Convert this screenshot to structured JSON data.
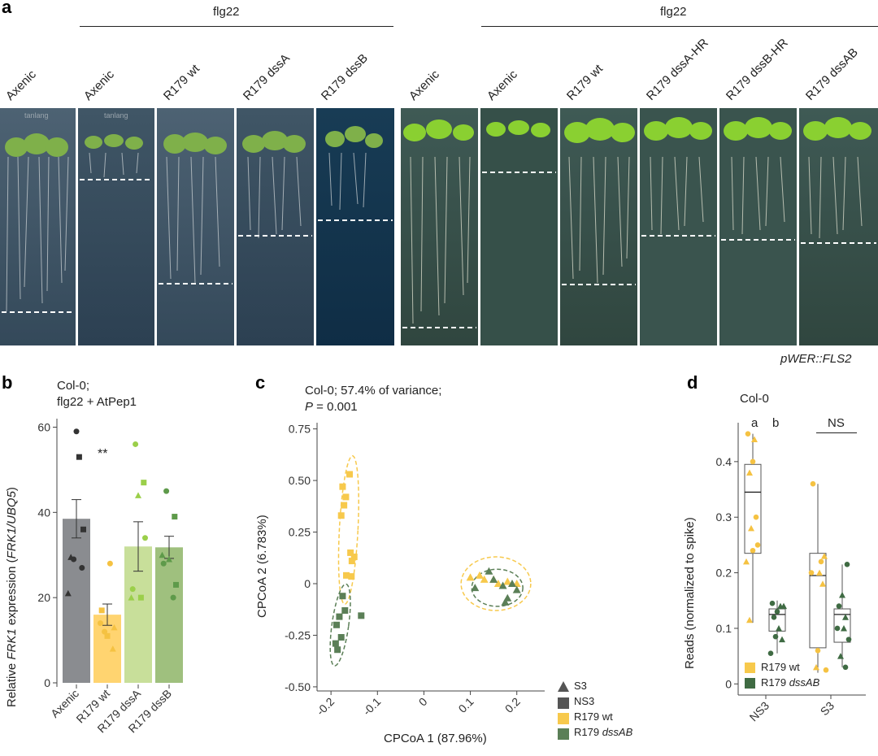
{
  "panel_a": {
    "letter": "a",
    "bracket_left": "flg22",
    "bracket_right": "flg22",
    "left_columns": [
      "Axenic",
      "Axenic",
      "R179 wt",
      "R179 dssA",
      "R179 dssB"
    ],
    "right_columns": [
      "Axenic",
      "Axenic",
      "R179 wt",
      "R179 dssA-HR",
      "R179 dssB-HR",
      "R179 dssAB"
    ],
    "caption": "pWER::FLS2",
    "plate_text": "tanlang"
  },
  "panel_b": {
    "letter": "b",
    "title_line1": "Col-0;",
    "title_line2": "flg22 + AtPep1",
    "ylabel_pre": "Relative ",
    "ylabel_gene": "FRK1",
    "ylabel_mid": " expression (",
    "ylabel_ratio": "FRK1/UBQ5",
    "ylabel_post": ")",
    "significance": "**",
    "colors": {
      "axenic": "#8a8c90",
      "wt": "#ffd470",
      "dssA": "#c8df9a",
      "dssB": "#9fc07e"
    }
  },
  "panel_c": {
    "letter": "c",
    "title_line1": "Col-0; 57.4% of variance;",
    "title_p": "P",
    "title_p_value": " = 0.001",
    "xlabel": "CPCoA 1 (87.96%)",
    "ylabel": "CPCoA 2 (6.783%)",
    "legend": [
      "S3",
      "NS3",
      "R179 wt",
      "R179 dssAB"
    ]
  },
  "panel_d": {
    "letter": "d",
    "title": "Col-0",
    "ylabel": "Reads (normalized to spike)",
    "sig_a": "a",
    "sig_b": "b",
    "sig_ns": "NS",
    "legend": [
      "R179 wt",
      "R179 dssAB"
    ]
  },
  "chart_data": [
    {
      "type": "bar",
      "title": "Col-0; flg22 + AtPep1",
      "ylabel": "Relative FRK1 expression (FRK1/UBQ5)",
      "ylim": [
        0,
        62
      ],
      "yticks": [
        "0",
        "20",
        "40",
        "60"
      ],
      "categories": [
        "Axenic",
        "R179 wt",
        "R179 dssA",
        "R179 dssB"
      ],
      "values": [
        38.5,
        16.0,
        32.0,
        31.8
      ],
      "errors": [
        4.5,
        2.5,
        5.8,
        2.6
      ]
    },
    {
      "type": "scatter",
      "title": "Col-0; 57.4% of variance; P = 0.001",
      "xlabel": "CPCoA 1 (87.96%)",
      "ylabel": "CPCoA 2 (6.783%)",
      "xlim": [
        -0.23,
        0.26
      ],
      "ylim": [
        -0.52,
        0.78
      ],
      "xticks": [
        "-0.2",
        "-0.1",
        "0",
        "0.1",
        "0.2"
      ],
      "yticks": [
        "-0.50",
        "-0.25",
        "0",
        "0.25",
        "0.50",
        "0.75"
      ],
      "series": [
        {
          "name": "R179 wt NS3",
          "points": [
            [
              -0.16,
              0.53
            ],
            [
              -0.175,
              0.47
            ],
            [
              -0.168,
              0.42
            ],
            [
              -0.172,
              0.38
            ],
            [
              -0.178,
              0.33
            ],
            [
              -0.158,
              0.15
            ],
            [
              -0.15,
              0.13
            ],
            [
              -0.155,
              0.11
            ],
            [
              -0.167,
              0.04
            ],
            [
              -0.156,
              0.035
            ]
          ]
        },
        {
          "name": "R179 dssAB NS3",
          "points": [
            [
              -0.175,
              -0.06
            ],
            [
              -0.17,
              -0.13
            ],
            [
              -0.182,
              -0.16
            ],
            [
              -0.135,
              -0.155
            ],
            [
              -0.188,
              -0.2
            ],
            [
              -0.19,
              -0.29
            ],
            [
              -0.186,
              -0.32
            ],
            [
              -0.178,
              -0.26
            ]
          ]
        },
        {
          "name": "R179 wt S3",
          "points": [
            [
              0.1,
              0.03
            ],
            [
              0.13,
              0.02
            ],
            [
              0.15,
              0.02
            ],
            [
              0.18,
              0.01
            ],
            [
              0.2,
              0.0
            ],
            [
              0.16,
              0.0
            ],
            [
              0.12,
              0.04
            ]
          ]
        },
        {
          "name": "R179 dssAB S3",
          "points": [
            [
              0.11,
              -0.02
            ],
            [
              0.15,
              0.02
            ],
            [
              0.17,
              -0.01
            ],
            [
              0.18,
              -0.07
            ],
            [
              0.175,
              -0.09
            ],
            [
              0.2,
              -0.03
            ],
            [
              0.14,
              0.06
            ],
            [
              0.19,
              0.0
            ]
          ]
        }
      ]
    },
    {
      "type": "box",
      "title": "Col-0",
      "ylabel": "Reads (normalized to spike)",
      "ylim": [
        -0.02,
        0.47
      ],
      "yticks": [
        "0",
        "0.1",
        "0.2",
        "0.3",
        "0.4"
      ],
      "categories": [
        "NS3",
        "S3"
      ],
      "series": [
        {
          "name": "R179 wt",
          "boxes": [
            {
              "min": 0.11,
              "q1": 0.235,
              "median": 0.345,
              "q3": 0.395,
              "max": 0.45
            },
            {
              "min": 0.02,
              "q1": 0.065,
              "median": 0.195,
              "q3": 0.235,
              "max": 0.36
            }
          ]
        },
        {
          "name": "R179 dssAB",
          "boxes": [
            {
              "min": 0.055,
              "q1": 0.095,
              "median": 0.125,
              "q3": 0.135,
              "max": 0.15
            },
            {
              "min": 0.03,
              "q1": 0.075,
              "median": 0.125,
              "q3": 0.135,
              "max": 0.215
            }
          ]
        }
      ]
    }
  ]
}
